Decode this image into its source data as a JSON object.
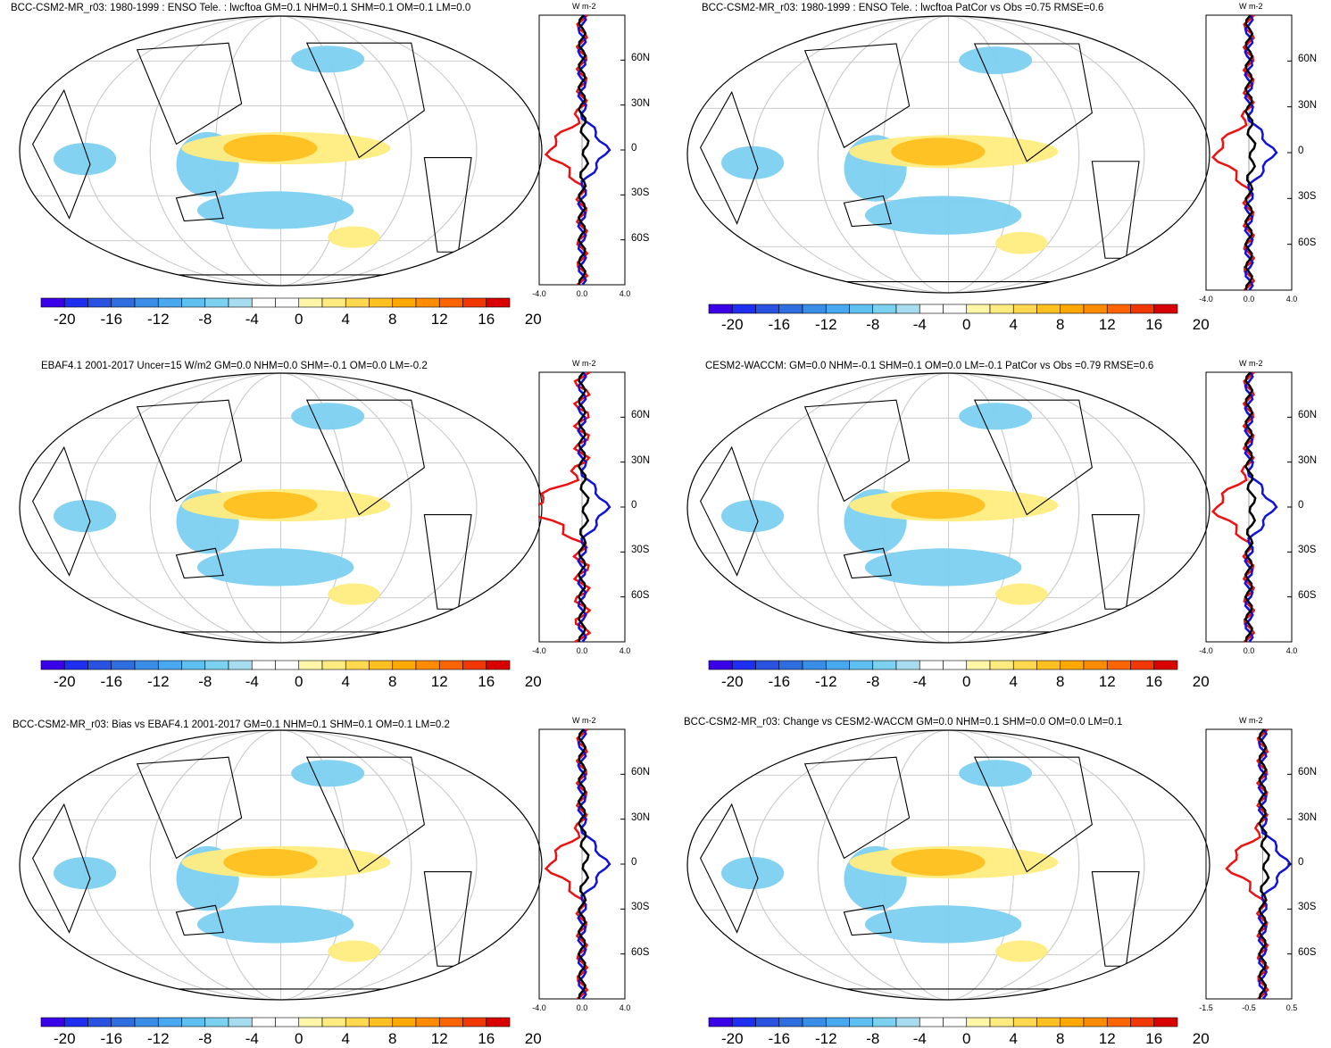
{
  "panels": [
    {
      "title": "BCC-CSM2-MR_r03: 1980-1999 : ENSO Tele. : lwcftoa GM=0.1 NHM=0.1 SHM=0.1 OM=0.1 LM=0.0",
      "zonal_unit": "W m-2",
      "lat_labels": [
        "60N",
        "30N",
        "0",
        "30S",
        "60S"
      ],
      "x_ticks": [
        "-4.0",
        "0.0",
        "4.0"
      ],
      "colorbar_labels": [
        "-20",
        "-16",
        "-12",
        "-8",
        "-4",
        "0",
        "4",
        "8",
        "12",
        "16",
        "20"
      ]
    },
    {
      "title": "BCC-CSM2-MR_r03: 1980-1999 : ENSO Tele. : lwcftoa PatCor vs Obs =0.75 RMSE=0.6",
      "zonal_unit": "W m-2",
      "lat_labels": [
        "60N",
        "30N",
        "0",
        "30S",
        "60S"
      ],
      "x_ticks": [
        "-4.0",
        "0.0",
        "4.0"
      ],
      "colorbar_labels": [
        "-20",
        "-16",
        "-12",
        "-8",
        "-4",
        "0",
        "4",
        "8",
        "12",
        "16",
        "20"
      ]
    },
    {
      "title": "EBAF4.1 2001-2017 Uncer=15 W/m2 GM=0.0 NHM=0.0 SHM=-0.1 OM=0.0 LM=-0.2",
      "zonal_unit": "W m-2",
      "lat_labels": [
        "60N",
        "30N",
        "0",
        "30S",
        "60S"
      ],
      "x_ticks": [
        "-4.0",
        "0.0",
        "4.0"
      ],
      "colorbar_labels": [
        "-20",
        "-16",
        "-12",
        "-8",
        "-4",
        "0",
        "4",
        "8",
        "12",
        "16",
        "20"
      ]
    },
    {
      "title": "CESM2-WACCM: GM=0.0 NHM=-0.1 SHM=0.1 OM=0.0 LM=-0.1 PatCor vs Obs =0.79 RMSE=0.6",
      "zonal_unit": "W m-2",
      "lat_labels": [
        "60N",
        "30N",
        "0",
        "30S",
        "60S"
      ],
      "x_ticks": [
        "-4.0",
        "0.0",
        "4.0"
      ],
      "colorbar_labels": [
        "-20",
        "-16",
        "-12",
        "-8",
        "-4",
        "0",
        "4",
        "8",
        "12",
        "16",
        "20"
      ]
    },
    {
      "title": "BCC-CSM2-MR_r03: Bias vs EBAF4.1 2001-2017 GM=0.1 NHM=0.1 SHM=0.1 OM=0.1 LM=0.2",
      "zonal_unit": "W m-2",
      "lat_labels": [
        "60N",
        "30N",
        "0",
        "30S",
        "60S"
      ],
      "x_ticks": [
        "-4.0",
        "0.0",
        "4.0"
      ],
      "colorbar_labels": [
        "-20",
        "-16",
        "-12",
        "-8",
        "-4",
        "0",
        "4",
        "8",
        "12",
        "16",
        "20"
      ]
    },
    {
      "title": "BCC-CSM2-MR_r03: Change vs CESM2-WACCM GM=0.0 NHM=0.1 SHM=0.0 OM=0.0 LM=0.1",
      "zonal_unit": "W m-2",
      "lat_labels": [
        "60N",
        "30N",
        "0",
        "30S",
        "60S"
      ],
      "x_ticks": [
        "-1.5",
        "-0.5",
        "0.5"
      ],
      "colorbar_labels": [
        "-20",
        "-16",
        "-12",
        "-8",
        "-4",
        "0",
        "4",
        "8",
        "12",
        "16",
        "20"
      ]
    }
  ],
  "colors": {
    "palette": [
      "#3a00e8",
      "#1f2ff0",
      "#2a52e0",
      "#2f6ee0",
      "#3a8ee8",
      "#48a8f0",
      "#5ec0f0",
      "#7cd0f0",
      "#a8dcf0",
      "#ffffff",
      "#ffffff",
      "#fff6a8",
      "#ffec80",
      "#ffd850",
      "#ffc020",
      "#ffa800",
      "#ff8c00",
      "#ff6400",
      "#f03800",
      "#d80000"
    ],
    "red_line": "#ee1111",
    "blue_line": "#1111dd",
    "black_line": "#000000"
  }
}
